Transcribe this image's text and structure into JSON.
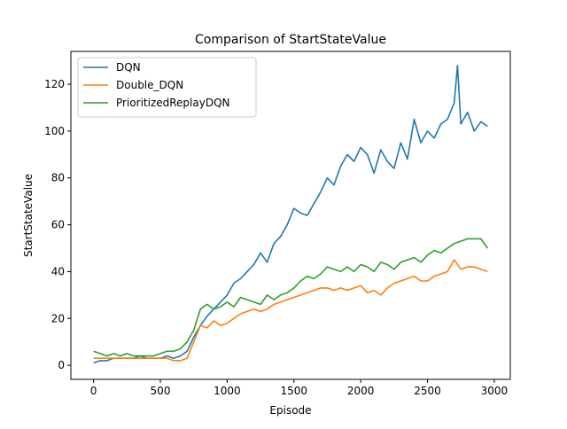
{
  "chart_data": {
    "type": "line",
    "title": "Comparison of StartStateValue",
    "xlabel": "Episode",
    "ylabel": "StartStateValue",
    "xlim": [
      -170,
      3120
    ],
    "ylim": [
      -6,
      134
    ],
    "xticks": [
      0,
      500,
      1000,
      1500,
      2000,
      2500,
      3000
    ],
    "yticks": [
      0,
      20,
      40,
      60,
      80,
      100,
      120
    ],
    "grid": false,
    "legend_position": "top-left",
    "series": [
      {
        "name": "DQN",
        "color": "#1f77b4",
        "x": [
          0,
          50,
          100,
          150,
          200,
          250,
          300,
          350,
          400,
          450,
          500,
          550,
          600,
          650,
          700,
          750,
          800,
          850,
          900,
          950,
          1000,
          1050,
          1100,
          1150,
          1200,
          1250,
          1300,
          1350,
          1400,
          1450,
          1500,
          1550,
          1600,
          1650,
          1700,
          1750,
          1800,
          1850,
          1900,
          1950,
          2000,
          2050,
          2100,
          2150,
          2200,
          2250,
          2300,
          2350,
          2400,
          2450,
          2500,
          2550,
          2600,
          2650,
          2700,
          2725,
          2750,
          2800,
          2850,
          2900,
          2950
        ],
        "y": [
          1,
          2,
          2,
          3,
          3,
          3,
          3,
          4,
          3,
          3,
          3,
          4,
          3,
          4,
          6,
          12,
          17,
          21,
          24,
          27,
          30,
          35,
          37,
          40,
          43,
          48,
          44,
          52,
          55,
          60,
          67,
          65,
          64,
          69,
          74,
          80,
          77,
          85,
          90,
          87,
          93,
          90,
          82,
          92,
          87,
          84,
          95,
          88,
          105,
          95,
          100,
          97,
          103,
          105,
          112,
          128,
          103,
          108,
          100,
          104,
          102
        ]
      },
      {
        "name": "Double_DQN",
        "color": "#ff7f0e",
        "x": [
          0,
          50,
          100,
          150,
          200,
          250,
          300,
          350,
          400,
          450,
          500,
          550,
          600,
          650,
          700,
          750,
          800,
          850,
          900,
          950,
          1000,
          1050,
          1100,
          1150,
          1200,
          1250,
          1300,
          1350,
          1400,
          1450,
          1500,
          1550,
          1600,
          1650,
          1700,
          1750,
          1800,
          1850,
          1900,
          1950,
          2000,
          2050,
          2100,
          2150,
          2200,
          2250,
          2300,
          2350,
          2400,
          2450,
          2500,
          2550,
          2600,
          2650,
          2700,
          2750,
          2800,
          2850,
          2900,
          2950
        ],
        "y": [
          3,
          3,
          3,
          3,
          3,
          3,
          3,
          3,
          3,
          3,
          3,
          3,
          2,
          2,
          3,
          10,
          17,
          16,
          19,
          17,
          18,
          20,
          22,
          23,
          24,
          23,
          24,
          26,
          27,
          28,
          29,
          30,
          31,
          32,
          33,
          33,
          32,
          33,
          32,
          33,
          34,
          31,
          32,
          30,
          33,
          35,
          36,
          37,
          38,
          36,
          36,
          38,
          39,
          40,
          45,
          41,
          42,
          42,
          41,
          40
        ]
      },
      {
        "name": "PrioritizedReplayDQN",
        "color": "#2ca02c",
        "x": [
          0,
          50,
          100,
          150,
          200,
          250,
          300,
          350,
          400,
          450,
          500,
          550,
          600,
          650,
          700,
          750,
          800,
          850,
          900,
          950,
          1000,
          1050,
          1100,
          1150,
          1200,
          1250,
          1300,
          1350,
          1400,
          1450,
          1500,
          1550,
          1600,
          1650,
          1700,
          1750,
          1800,
          1850,
          1900,
          1950,
          2000,
          2050,
          2100,
          2150,
          2200,
          2250,
          2300,
          2350,
          2400,
          2450,
          2500,
          2550,
          2600,
          2650,
          2700,
          2750,
          2800,
          2850,
          2900,
          2950
        ],
        "y": [
          6,
          5,
          4,
          5,
          4,
          5,
          4,
          4,
          4,
          4,
          5,
          6,
          6,
          7,
          10,
          15,
          24,
          26,
          24,
          25,
          27,
          25,
          29,
          28,
          27,
          26,
          30,
          28,
          30,
          31,
          33,
          36,
          38,
          37,
          39,
          42,
          41,
          40,
          42,
          40,
          43,
          42,
          40,
          44,
          43,
          41,
          44,
          45,
          46,
          44,
          47,
          49,
          48,
          50,
          52,
          53,
          54,
          54,
          54,
          50
        ]
      }
    ]
  }
}
